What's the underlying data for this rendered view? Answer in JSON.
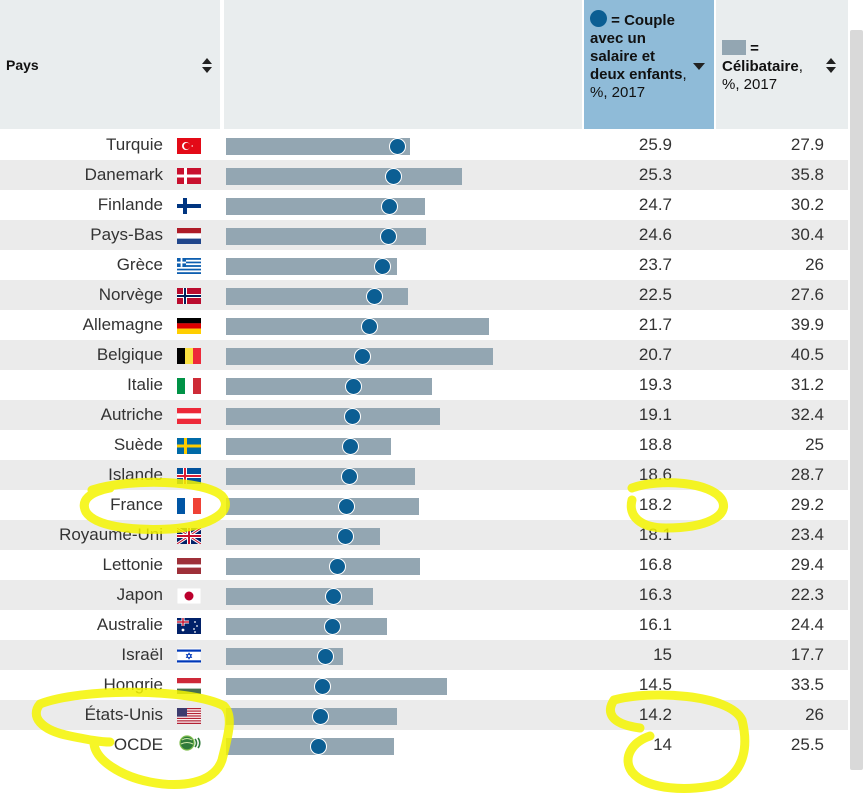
{
  "header": {
    "pays": "Pays",
    "couple_bold": "= Couple avec un salaire et deux enfants",
    "couple_rest": ", %, 2017",
    "single_bold": "= Célibataire",
    "single_rest": ", %, 2017"
  },
  "colors": {
    "dot": "#0b5e93",
    "bar": "#93a6b2",
    "highlight": "#f5f500",
    "active_header": "#8fbbd8"
  },
  "chart_data": {
    "type": "bar",
    "series": [
      {
        "name": "Couple avec un salaire et deux enfants, %, 2017",
        "marker": "dot"
      },
      {
        "name": "Célibataire, %, 2017",
        "marker": "bar"
      }
    ],
    "sorted_by": "Couple avec un salaire et deux enfants, %, 2017",
    "rows": [
      {
        "country": "Turquie",
        "flag": "tr-flag-icon",
        "couple": "25.9",
        "single": "27.9"
      },
      {
        "country": "Danemark",
        "flag": "dk-flag-icon",
        "couple": "25.3",
        "single": "35.8"
      },
      {
        "country": "Finlande",
        "flag": "fi-flag-icon",
        "couple": "24.7",
        "single": "30.2"
      },
      {
        "country": "Pays-Bas",
        "flag": "nl-flag-icon",
        "couple": "24.6",
        "single": "30.4"
      },
      {
        "country": "Grèce",
        "flag": "gr-flag-icon",
        "couple": "23.7",
        "single": "26"
      },
      {
        "country": "Norvège",
        "flag": "no-flag-icon",
        "couple": "22.5",
        "single": "27.6"
      },
      {
        "country": "Allemagne",
        "flag": "de-flag-icon",
        "couple": "21.7",
        "single": "39.9"
      },
      {
        "country": "Belgique",
        "flag": "be-flag-icon",
        "couple": "20.7",
        "single": "40.5"
      },
      {
        "country": "Italie",
        "flag": "it-flag-icon",
        "couple": "19.3",
        "single": "31.2"
      },
      {
        "country": "Autriche",
        "flag": "at-flag-icon",
        "couple": "19.1",
        "single": "32.4"
      },
      {
        "country": "Suède",
        "flag": "se-flag-icon",
        "couple": "18.8",
        "single": "25"
      },
      {
        "country": "Islande",
        "flag": "is-flag-icon",
        "couple": "18.6",
        "single": "28.7"
      },
      {
        "country": "France",
        "flag": "fr-flag-icon",
        "couple": "18.2",
        "single": "29.2"
      },
      {
        "country": "Royaume-Uni",
        "flag": "gb-flag-icon",
        "couple": "18.1",
        "single": "23.4"
      },
      {
        "country": "Lettonie",
        "flag": "lv-flag-icon",
        "couple": "16.8",
        "single": "29.4"
      },
      {
        "country": "Japon",
        "flag": "jp-flag-icon",
        "couple": "16.3",
        "single": "22.3"
      },
      {
        "country": "Australie",
        "flag": "au-flag-icon",
        "couple": "16.1",
        "single": "24.4"
      },
      {
        "country": "Israël",
        "flag": "il-flag-icon",
        "couple": "15",
        "single": "17.7"
      },
      {
        "country": "Hongrie",
        "flag": "hu-flag-icon",
        "couple": "14.5",
        "single": "33.5"
      },
      {
        "country": "États-Unis",
        "flag": "us-flag-icon",
        "couple": "14.2",
        "single": "26"
      },
      {
        "country": "OCDE",
        "flag": "oecd-logo-icon",
        "couple": "14",
        "single": "25.5"
      }
    ],
    "xlim": [
      0,
      54
    ],
    "grid": false
  },
  "annotations": [
    {
      "type": "yellow-highlight-circle",
      "around": "France"
    },
    {
      "type": "yellow-highlight-circle",
      "around": "18.2"
    },
    {
      "type": "yellow-highlight-circle",
      "around": "États-Unis / OCDE"
    },
    {
      "type": "yellow-highlight-circle",
      "around": "14.2 / 14"
    }
  ]
}
